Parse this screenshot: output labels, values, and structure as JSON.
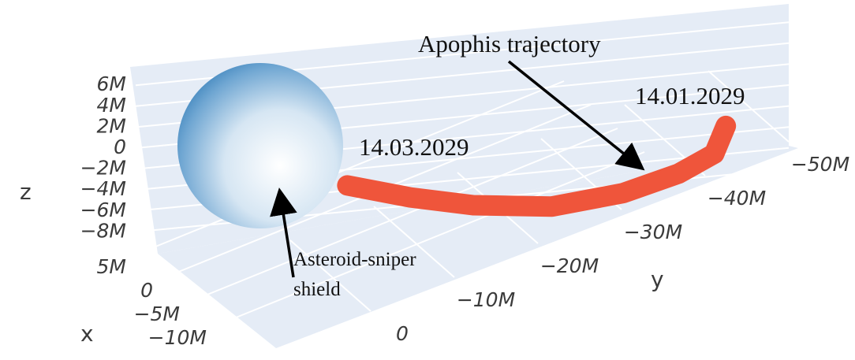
{
  "chart_data": {
    "type": "scatter3d",
    "xlabel": "x",
    "ylabel": "y",
    "zlabel": "z",
    "xticks": [
      {
        "value": 5000000,
        "label": "5M"
      },
      0,
      {
        "value": -5000000,
        "label": "−5M"
      },
      {
        "value": -10000000,
        "label": "−10M"
      }
    ],
    "yticks": [
      0,
      {
        "value": -10000000,
        "label": "−10M"
      },
      {
        "value": -20000000,
        "label": "−20M"
      },
      {
        "value": -30000000,
        "label": "−30M"
      },
      {
        "value": -40000000,
        "label": "−40M"
      },
      {
        "value": -50000000,
        "label": "−50M"
      }
    ],
    "zticks": [
      {
        "value": 6000000,
        "label": "6M"
      },
      {
        "value": 4000000,
        "label": "4M"
      },
      {
        "value": 2000000,
        "label": "2M"
      },
      0,
      {
        "value": -2000000,
        "label": "−2M"
      },
      {
        "value": -4000000,
        "label": "−4M"
      },
      {
        "value": -6000000,
        "label": "−6M"
      },
      {
        "value": -8000000,
        "label": "−8M"
      }
    ],
    "grid": true,
    "trajectory": {
      "color": "#ef553b",
      "x": [
        -5000000,
        -5000000,
        -5000000,
        -5000000,
        -5000000,
        -5000000,
        -5000000,
        -5000000
      ],
      "y": [
        -6700000,
        -14300000,
        -21900000,
        -31400000,
        -40000000,
        -46700000,
        -51000000,
        -52400000
      ],
      "z": [
        -3700000,
        -7300000,
        -10500000,
        -13700000,
        -15200000,
        -15500000,
        -15000000,
        -12800000
      ]
    },
    "annotations": [
      {
        "text": "Apophis trajectory"
      },
      {
        "text": "14.01.2029"
      },
      {
        "text": "14.03.2029"
      },
      {
        "lines": [
          "Asteroid-sniper",
          "shield"
        ]
      }
    ]
  }
}
